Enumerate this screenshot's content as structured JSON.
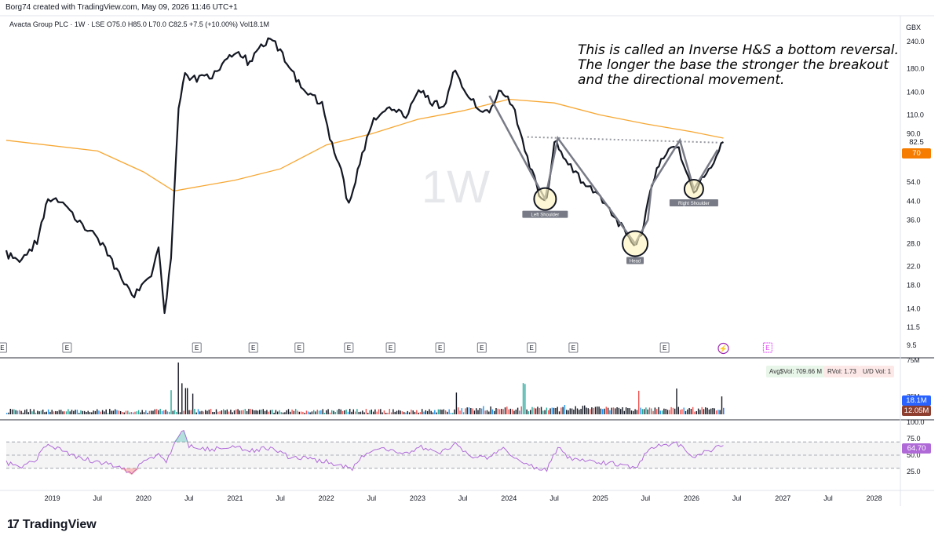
{
  "header": {
    "credit": "Borg74 created with TradingView.com, May 09, 2026 11:46 UTC+1"
  },
  "legend": {
    "text": "Avacta Group PLC · 1W · LSE  O75.0  H85.0  L70.0  C82.5  +7.5 (+10.00%)  Vol18.1M"
  },
  "watermark": "1W",
  "currency": "GBX",
  "annotation": "This is called an Inverse H&S a bottom reversal. The longer the base the stronger the breakout and the directional movement.",
  "footer": {
    "brand": "TradingView",
    "logo_icon": "tradingview-logo-icon"
  },
  "colors": {
    "up": "#131722",
    "ma": "#f7a733",
    "neckline": "#9598a1",
    "pattern": "#787b86",
    "rsi": "#b06ad8",
    "last_price": "#f57c00",
    "vol_up": "#26a69a",
    "vol_down": "#ef5350",
    "vol_blue": "#2196f3",
    "vol_last_blue": "#2962ff",
    "vol_avg": "#8d3e2f"
  },
  "chart_data": {
    "type": "line",
    "title": "",
    "price_scale": {
      "scale": "log",
      "ticks": [
        240.0,
        180.0,
        140.0,
        110.0,
        90.0,
        82.5,
        70.0,
        54.0,
        44.0,
        36.0,
        28.0,
        22.0,
        18.0,
        14.0,
        11.5,
        9.5
      ]
    },
    "time_axis": [
      {
        "date": "2019-01-01",
        "label": "2019"
      },
      {
        "date": "2019-07-01",
        "label": "Jul"
      },
      {
        "date": "2020-01-01",
        "label": "2020"
      },
      {
        "date": "2020-07-01",
        "label": "Jul"
      },
      {
        "date": "2021-01-01",
        "label": "2021"
      },
      {
        "date": "2021-07-01",
        "label": "Jul"
      },
      {
        "date": "2022-01-01",
        "label": "2022"
      },
      {
        "date": "2022-07-01",
        "label": "Jul"
      },
      {
        "date": "2023-01-01",
        "label": "2023"
      },
      {
        "date": "2023-07-01",
        "label": "Jul"
      },
      {
        "date": "2024-01-01",
        "label": "2024"
      },
      {
        "date": "2024-07-01",
        "label": "Jul"
      },
      {
        "date": "2025-01-01",
        "label": "2025"
      },
      {
        "date": "2025-07-01",
        "label": "Jul"
      },
      {
        "date": "2026-01-01",
        "label": "2026"
      },
      {
        "date": "2026-07-01",
        "label": "Jul"
      },
      {
        "date": "2027-01-01",
        "label": "2027"
      },
      {
        "date": "2027-07-01",
        "label": "Jul"
      },
      {
        "date": "2028-01-01",
        "label": "2028"
      }
    ],
    "series": [
      {
        "kind": "price",
        "points": [
          [
            "2018-07-01",
            25
          ],
          [
            "2018-09-01",
            23
          ],
          [
            "2018-11-01",
            29
          ],
          [
            "2018-12-15",
            45
          ],
          [
            "2019-01-15",
            46
          ],
          [
            "2019-04-01",
            37
          ],
          [
            "2019-06-01",
            32
          ],
          [
            "2019-08-01",
            27
          ],
          [
            "2019-09-15",
            21
          ],
          [
            "2019-11-15",
            16
          ],
          [
            "2019-12-15",
            17
          ],
          [
            "2020-02-01",
            20
          ],
          [
            "2020-03-01",
            28
          ],
          [
            "2020-03-25",
            13
          ],
          [
            "2020-04-20",
            24
          ],
          [
            "2020-05-20",
            120
          ],
          [
            "2020-06-15",
            170
          ],
          [
            "2020-08-01",
            160
          ],
          [
            "2020-10-01",
            165
          ],
          [
            "2020-12-01",
            200
          ],
          [
            "2021-01-15",
            215
          ],
          [
            "2021-03-01",
            190
          ],
          [
            "2021-04-15",
            230
          ],
          [
            "2021-06-01",
            250
          ],
          [
            "2021-07-01",
            215
          ],
          [
            "2021-08-15",
            180
          ],
          [
            "2021-10-01",
            140
          ],
          [
            "2021-12-15",
            125
          ],
          [
            "2022-01-15",
            85
          ],
          [
            "2022-03-01",
            60
          ],
          [
            "2022-04-01",
            42
          ],
          [
            "2022-05-15",
            65
          ],
          [
            "2022-07-01",
            100
          ],
          [
            "2022-09-01",
            120
          ],
          [
            "2022-11-15",
            110
          ],
          [
            "2023-01-15",
            145
          ],
          [
            "2023-03-01",
            125
          ],
          [
            "2023-04-15",
            120
          ],
          [
            "2023-06-01",
            180
          ],
          [
            "2023-07-15",
            135
          ],
          [
            "2023-09-01",
            120
          ],
          [
            "2023-10-15",
            110
          ],
          [
            "2023-12-01",
            145
          ],
          [
            "2024-01-15",
            125
          ],
          [
            "2024-03-15",
            70
          ],
          [
            "2024-05-01",
            48
          ],
          [
            "2024-06-01",
            44
          ],
          [
            "2024-07-01",
            85
          ],
          [
            "2024-08-15",
            68
          ],
          [
            "2024-10-15",
            55
          ],
          [
            "2025-01-01",
            45
          ],
          [
            "2025-03-15",
            35
          ],
          [
            "2025-05-15",
            27
          ],
          [
            "2025-06-15",
            30
          ],
          [
            "2025-07-20",
            50
          ],
          [
            "2025-09-01",
            70
          ],
          [
            "2025-11-01",
            80
          ],
          [
            "2025-12-10",
            62
          ],
          [
            "2026-01-10",
            49
          ],
          [
            "2026-02-20",
            58
          ],
          [
            "2026-03-20",
            65
          ],
          [
            "2026-04-20",
            74
          ],
          [
            "2026-05-08",
            82.5
          ]
        ]
      },
      {
        "kind": "moving_average",
        "points": [
          [
            "2018-07-01",
            84
          ],
          [
            "2019-07-01",
            75
          ],
          [
            "2020-01-01",
            60
          ],
          [
            "2020-05-01",
            49
          ],
          [
            "2021-01-01",
            55
          ],
          [
            "2021-07-01",
            62
          ],
          [
            "2022-01-01",
            80
          ],
          [
            "2022-07-01",
            90
          ],
          [
            "2023-01-01",
            105
          ],
          [
            "2023-07-01",
            115
          ],
          [
            "2024-01-01",
            130
          ],
          [
            "2024-07-01",
            125
          ],
          [
            "2025-01-01",
            110
          ],
          [
            "2025-07-01",
            100
          ],
          [
            "2026-01-01",
            92
          ],
          [
            "2026-05-08",
            86
          ]
        ]
      }
    ],
    "pattern": {
      "name": "Inverse H&S",
      "neckline": [
        [
          "2024-03-15",
          87
        ],
        [
          "2026-04-15",
          82
        ]
      ],
      "zigzag": [
        [
          "2023-10-15",
          135
        ],
        [
          "2024-05-25",
          45
        ],
        [
          "2024-07-15",
          86
        ],
        [
          "2025-05-20",
          28
        ],
        [
          "2025-07-10",
          36
        ],
        [
          "2025-07-25",
          52
        ],
        [
          "2025-11-15",
          84
        ],
        [
          "2026-01-10",
          50
        ],
        [
          "2026-04-15",
          76
        ]
      ],
      "markers": [
        {
          "date": "2024-05-25",
          "price": 45,
          "r": 14,
          "label": "Left Shoulder"
        },
        {
          "date": "2025-05-20",
          "price": 28,
          "r": 16,
          "label": "Head"
        },
        {
          "date": "2026-01-10",
          "price": 50,
          "r": 12,
          "label": "Right Shoulder"
        }
      ]
    },
    "earnings": [
      "2018-06-15",
      "2019-03-01",
      "2020-08-01",
      "2021-03-15",
      "2021-09-15",
      "2022-04-01",
      "2022-09-15",
      "2023-04-01",
      "2023-09-15",
      "2024-04-01",
      "2024-09-15",
      "2025-09-15"
    ],
    "volume": {
      "scale_top_label": "75M",
      "scale_mid_label": "25M",
      "stats": {
        "avg": "Avg$Vol: 709.66 M",
        "rvol": "RVol: 1.73",
        "ud": "U/D Vol: 1"
      },
      "last": "18.1M",
      "avg_last": "12.05M",
      "spikes": [
        [
          "2020-05-15",
          75
        ],
        [
          "2020-06-01",
          45
        ],
        [
          "2020-04-20",
          35
        ],
        [
          "2020-06-20",
          38
        ],
        [
          "2020-07-15",
          30
        ],
        [
          "2023-06-01",
          28
        ],
        [
          "2024-03-01",
          42
        ],
        [
          "2025-11-01",
          35
        ],
        [
          "2025-06-01",
          30
        ],
        [
          "2026-05-01",
          22
        ]
      ]
    },
    "rsi": {
      "ticks": [
        100.0,
        75.0,
        50.0,
        25.0
      ],
      "value": "64.70",
      "points": [
        [
          "2018-07-01",
          38
        ],
        [
          "2018-09-01",
          32
        ],
        [
          "2018-11-01",
          45
        ],
        [
          "2018-12-15",
          68
        ],
        [
          "2019-03-01",
          52
        ],
        [
          "2019-06-01",
          42
        ],
        [
          "2019-09-01",
          35
        ],
        [
          "2019-10-15",
          28
        ],
        [
          "2019-11-15",
          22
        ],
        [
          "2019-12-15",
          35
        ],
        [
          "2020-03-01",
          52
        ],
        [
          "2020-04-01",
          40
        ],
        [
          "2020-05-15",
          78
        ],
        [
          "2020-06-10",
          88
        ],
        [
          "2020-07-01",
          63
        ],
        [
          "2020-10-01",
          58
        ],
        [
          "2021-01-01",
          65
        ],
        [
          "2021-03-01",
          56
        ],
        [
          "2021-06-01",
          62
        ],
        [
          "2021-08-01",
          48
        ],
        [
          "2021-10-01",
          45
        ],
        [
          "2022-01-01",
          40
        ],
        [
          "2022-03-01",
          34
        ],
        [
          "2022-04-15",
          30
        ],
        [
          "2022-06-01",
          50
        ],
        [
          "2022-08-01",
          60
        ],
        [
          "2022-11-01",
          52
        ],
        [
          "2023-01-15",
          62
        ],
        [
          "2023-04-01",
          52
        ],
        [
          "2023-06-01",
          66
        ],
        [
          "2023-08-01",
          48
        ],
        [
          "2023-10-15",
          46
        ],
        [
          "2023-12-01",
          62
        ],
        [
          "2024-02-01",
          42
        ],
        [
          "2024-04-01",
          33
        ],
        [
          "2024-06-01",
          28
        ],
        [
          "2024-07-15",
          62
        ],
        [
          "2024-09-01",
          45
        ],
        [
          "2024-11-01",
          40
        ],
        [
          "2025-02-01",
          38
        ],
        [
          "2025-04-01",
          35
        ],
        [
          "2025-05-20",
          30
        ],
        [
          "2025-07-15",
          60
        ],
        [
          "2025-09-01",
          66
        ],
        [
          "2025-11-01",
          68
        ],
        [
          "2025-12-15",
          55
        ],
        [
          "2026-01-15",
          48
        ],
        [
          "2026-03-01",
          55
        ],
        [
          "2026-05-08",
          64.7
        ]
      ]
    }
  }
}
